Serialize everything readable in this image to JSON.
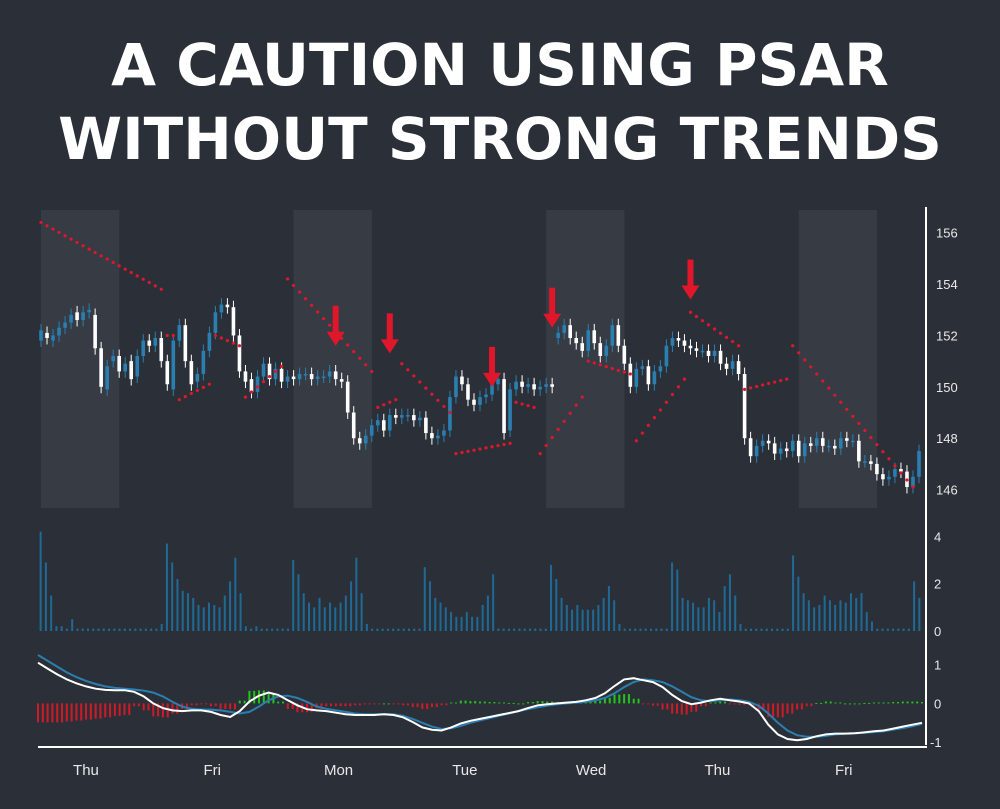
{
  "title": {
    "line1": "A CAUTION USING PSAR",
    "line2": "WITHOUT STRONG TRENDS"
  },
  "colors": {
    "background": "#2b3038",
    "session_band": "#363b44",
    "candle_up": "#2a7fb0",
    "candle_down": "#ffffff",
    "psar": "#e0162b",
    "arrow": "#e0162b",
    "volume": "#1f6a95",
    "macd_line": "#ffffff",
    "signal_line": "#2a7fb0",
    "hist_pos": "#22c41a",
    "hist_neg": "#d11a28"
  },
  "chart_data": [
    {
      "type": "candlestick",
      "name": "price",
      "ylim": [
        145.4,
        157
      ],
      "yticks": [
        "156",
        "154",
        "152",
        "150",
        "148",
        "146"
      ],
      "ytick_values": [
        156,
        154,
        152,
        150,
        148,
        146
      ],
      "xticks": [
        "Thu",
        "Fri",
        "Mon",
        "Tue",
        "Wed",
        "Thu",
        "Fri"
      ],
      "sessions": 7,
      "close": [
        152.2,
        151.9,
        152.0,
        152.3,
        152.5,
        152.8,
        152.6,
        152.9,
        153.0,
        151.5,
        150.0,
        150.8,
        151.2,
        150.6,
        150.9,
        150.3,
        151.2,
        151.8,
        151.6,
        151.9,
        151.0,
        150.1,
        151.8,
        152.4,
        151.0,
        150.1,
        150.5,
        151.4,
        152.1,
        152.9,
        153.2,
        153.1,
        152.0,
        150.6,
        150.2,
        149.8,
        150.4,
        150.9,
        150.3,
        150.7,
        150.2,
        150.4,
        150.3,
        150.5,
        150.5,
        150.3,
        150.4,
        150.4,
        150.6,
        150.3,
        150.2,
        149.0,
        148.0,
        147.8,
        148.1,
        148.5,
        148.7,
        148.3,
        148.9,
        148.8,
        148.9,
        148.9,
        148.7,
        148.8,
        148.2,
        148.0,
        148.1,
        148.3,
        149.6,
        150.4,
        150.1,
        149.5,
        149.3,
        149.6,
        149.7,
        150.1,
        150.3,
        148.2,
        149.9,
        150.2,
        150.0,
        150.1,
        149.9,
        150.0,
        150.1,
        150.0,
        152.1,
        152.4,
        151.9,
        151.7,
        151.4,
        152.2,
        151.7,
        151.2,
        151.6,
        152.4,
        151.6,
        150.9,
        150.0,
        150.7,
        150.8,
        150.1,
        150.6,
        150.8,
        151.6,
        151.9,
        151.8,
        151.6,
        151.5,
        151.4,
        151.4,
        151.2,
        151.4,
        150.9,
        150.7,
        151.0,
        150.5,
        148.0,
        147.3,
        147.7,
        147.9,
        147.8,
        147.4,
        147.6,
        147.5,
        147.9,
        147.3,
        147.8,
        147.7,
        148.0,
        147.7,
        147.7,
        147.6,
        148.0,
        147.9,
        147.9,
        147.1,
        147.1,
        147.0,
        146.6,
        146.4,
        146.5,
        146.8,
        146.7,
        146.1,
        146.5,
        147.5
      ],
      "open": [
        151.8,
        152.1,
        151.8,
        152.0,
        152.3,
        152.5,
        152.9,
        152.6,
        152.9,
        152.8,
        151.5,
        149.9,
        151.0,
        151.2,
        150.6,
        151.0,
        150.4,
        151.2,
        151.8,
        151.6,
        151.9,
        151.0,
        149.9,
        151.8,
        152.4,
        151.0,
        150.2,
        150.5,
        151.4,
        152.1,
        152.9,
        153.2,
        153.1,
        152.0,
        150.6,
        150.3,
        149.8,
        150.4,
        150.9,
        150.3,
        150.7,
        150.2,
        150.4,
        150.3,
        150.5,
        150.5,
        150.3,
        150.4,
        150.4,
        150.6,
        150.3,
        150.2,
        149.0,
        148.0,
        147.8,
        148.1,
        148.5,
        148.7,
        148.3,
        148.9,
        148.8,
        148.9,
        148.9,
        148.7,
        148.8,
        148.2,
        148.0,
        148.1,
        148.3,
        149.6,
        150.4,
        150.1,
        149.5,
        149.3,
        149.6,
        149.7,
        150.1,
        150.3,
        148.3,
        149.9,
        150.2,
        150.0,
        150.1,
        149.9,
        150.0,
        150.1,
        151.9,
        152.1,
        152.4,
        151.9,
        151.7,
        151.4,
        152.2,
        151.7,
        151.2,
        151.6,
        152.4,
        151.6,
        150.9,
        150.0,
        150.7,
        150.8,
        150.1,
        150.6,
        150.8,
        151.6,
        151.9,
        151.8,
        151.6,
        151.5,
        151.4,
        151.4,
        151.2,
        151.4,
        150.9,
        150.7,
        151.0,
        150.5,
        148.0,
        147.3,
        147.7,
        147.9,
        147.8,
        147.4,
        147.6,
        147.5,
        147.9,
        147.3,
        147.8,
        147.7,
        148.0,
        147.7,
        147.7,
        147.6,
        148.0,
        147.9,
        147.9,
        147.1,
        147.1,
        147.0,
        146.6,
        146.4,
        146.5,
        146.8,
        146.7,
        146.1,
        146.5
      ]
    },
    {
      "type": "scatter",
      "name": "psar",
      "segments": [
        {
          "start": 0,
          "from": 156.4,
          "to": 153.8,
          "len": 21
        },
        {
          "start": 21,
          "from": 152.0,
          "to": 152.0,
          "len": 2
        },
        {
          "start": 23,
          "from": 149.5,
          "to": 150.1,
          "len": 6
        },
        {
          "start": 29,
          "from": 152.0,
          "to": 151.6,
          "len": 5
        },
        {
          "start": 34,
          "from": 149.6,
          "to": 150.8,
          "len": 7
        },
        {
          "start": 41,
          "from": 154.2,
          "to": 150.6,
          "len": 15
        },
        {
          "start": 56,
          "from": 149.2,
          "to": 149.5,
          "len": 4
        },
        {
          "start": 60,
          "from": 150.9,
          "to": 149.0,
          "len": 9
        },
        {
          "start": 69,
          "from": 147.4,
          "to": 147.8,
          "len": 10
        },
        {
          "start": 79,
          "from": 149.4,
          "to": 149.2,
          "len": 4
        },
        {
          "start": 83,
          "from": 147.4,
          "to": 149.6,
          "len": 8
        },
        {
          "start": 91,
          "from": 151.0,
          "to": 150.5,
          "len": 8
        },
        {
          "start": 99,
          "from": 147.9,
          "to": 150.3,
          "len": 9
        },
        {
          "start": 108,
          "from": 152.9,
          "to": 151.6,
          "len": 9
        },
        {
          "start": 117,
          "from": 149.9,
          "to": 150.3,
          "len": 8
        },
        {
          "start": 125,
          "from": 151.6,
          "to": 146.1,
          "len": 21
        }
      ]
    },
    {
      "type": "bar",
      "name": "volume",
      "ylim": [
        0,
        4.4
      ],
      "yticks": [
        "4",
        "2",
        "0"
      ],
      "ytick_values": [
        4,
        2,
        0
      ],
      "values": [
        4.2,
        2.9,
        1.5,
        0.2,
        0.2,
        0.1,
        0.5,
        0.1,
        0.1,
        0.1,
        0.1,
        0.1,
        0.1,
        0.1,
        0.1,
        0.1,
        0.1,
        0.1,
        0.1,
        0.1,
        0.1,
        0.1,
        0.1,
        0.3,
        3.7,
        2.9,
        2.2,
        1.7,
        1.6,
        1.4,
        1.1,
        1.0,
        1.2,
        1.1,
        1.0,
        1.5,
        2.1,
        3.1,
        1.6,
        0.2,
        0.1,
        0.2,
        0.1,
        0.1,
        0.1,
        0.1,
        0.1,
        0.1,
        3.0,
        2.4,
        1.6,
        1.2,
        1.0,
        1.4,
        1.0,
        1.2,
        1.0,
        1.2,
        1.5,
        2.1,
        3.1,
        1.6,
        0.3,
        0.1,
        0.1,
        0.1,
        0.1,
        0.1,
        0.1,
        0.1,
        0.1,
        0.1,
        0.1,
        2.7,
        2.1,
        1.4,
        1.2,
        1.0,
        0.8,
        0.6,
        0.6,
        0.8,
        0.6,
        0.6,
        1.1,
        1.5,
        2.4,
        0.1,
        0.1,
        0.1,
        0.1,
        0.1,
        0.1,
        0.1,
        0.1,
        0.1,
        0.1,
        2.8,
        2.2,
        1.4,
        1.1,
        0.9,
        1.1,
        0.9,
        0.9,
        0.9,
        1.1,
        1.4,
        1.9,
        1.3,
        0.3,
        0.1,
        0.1,
        0.1,
        0.1,
        0.1,
        0.1,
        0.1,
        0.1,
        0.1,
        2.9,
        2.6,
        1.4,
        1.3,
        1.2,
        1.0,
        1.0,
        1.4,
        1.3,
        0.8,
        1.9,
        2.4,
        1.5,
        0.3,
        0.1,
        0.1,
        0.1,
        0.1,
        0.1,
        0.1,
        0.1,
        0.1,
        0.1,
        3.2,
        2.3,
        1.6,
        1.3,
        1.0,
        1.1,
        1.5,
        1.3,
        1.1,
        1.3,
        1.2,
        1.6,
        1.4,
        1.6,
        0.8,
        0.4,
        0.1,
        0.1,
        0.1,
        0.1,
        0.1,
        0.1,
        0.1,
        2.1,
        1.4
      ]
    },
    {
      "type": "line",
      "name": "macd",
      "ylim": [
        -1.1,
        1.25
      ],
      "yticks": [
        "1",
        "0",
        "-1"
      ],
      "ytick_values": [
        1,
        0,
        -1
      ],
      "macd": [
        1.05,
        0.9,
        0.75,
        0.62,
        0.52,
        0.44,
        0.38,
        0.35,
        0.34,
        0.34,
        0.3,
        0.18,
        0.0,
        -0.12,
        -0.18,
        -0.2,
        -0.18,
        -0.18,
        -0.22,
        -0.3,
        -0.35,
        -0.2,
        0.05,
        0.2,
        0.28,
        0.22,
        0.08,
        -0.05,
        -0.15,
        -0.18,
        -0.2,
        -0.24,
        -0.28,
        -0.3,
        -0.3,
        -0.3,
        -0.28,
        -0.3,
        -0.36,
        -0.48,
        -0.62,
        -0.68,
        -0.7,
        -0.62,
        -0.52,
        -0.45,
        -0.4,
        -0.35,
        -0.3,
        -0.25,
        -0.2,
        -0.12,
        -0.05,
        -0.02,
        0.0,
        0.02,
        0.04,
        0.08,
        0.14,
        0.26,
        0.45,
        0.62,
        0.65,
        0.6,
        0.55,
        0.42,
        0.22,
        0.06,
        -0.02,
        0.02,
        0.08,
        0.12,
        0.08,
        0.05,
        0.0,
        -0.2,
        -0.55,
        -0.8,
        -0.92,
        -0.95,
        -0.92,
        -0.85,
        -0.8,
        -0.78,
        -0.78,
        -0.77,
        -0.75,
        -0.72,
        -0.7,
        -0.65,
        -0.6,
        -0.55,
        -0.5
      ],
      "signal": [
        1.25,
        1.1,
        0.95,
        0.8,
        0.68,
        0.58,
        0.5,
        0.44,
        0.4,
        0.38,
        0.36,
        0.33,
        0.28,
        0.18,
        0.04,
        -0.08,
        -0.14,
        -0.16,
        -0.16,
        -0.18,
        -0.22,
        -0.26,
        -0.22,
        -0.08,
        0.08,
        0.18,
        0.2,
        0.14,
        0.04,
        -0.08,
        -0.14,
        -0.18,
        -0.22,
        -0.26,
        -0.28,
        -0.28,
        -0.28,
        -0.28,
        -0.32,
        -0.4,
        -0.5,
        -0.6,
        -0.66,
        -0.64,
        -0.58,
        -0.5,
        -0.44,
        -0.38,
        -0.32,
        -0.26,
        -0.2,
        -0.15,
        -0.1,
        -0.06,
        -0.02,
        0.0,
        0.02,
        0.04,
        0.08,
        0.14,
        0.26,
        0.42,
        0.55,
        0.62,
        0.6,
        0.55,
        0.44,
        0.3,
        0.16,
        0.08,
        0.06,
        0.08,
        0.1,
        0.08,
        0.04,
        -0.06,
        -0.26,
        -0.5,
        -0.7,
        -0.82,
        -0.86,
        -0.86,
        -0.84,
        -0.8,
        -0.78,
        -0.77,
        -0.76,
        -0.74,
        -0.72,
        -0.68,
        -0.64,
        -0.59,
        -0.53
      ]
    }
  ],
  "annotations": {
    "arrows": [
      {
        "name": "arrow-monday",
        "x_index": 49,
        "price": 151.6
      },
      {
        "name": "arrow-monday-late",
        "x_index": 58,
        "price": 151.3
      },
      {
        "name": "arrow-tuesday",
        "x_index": 75,
        "price": 150.0
      },
      {
        "name": "arrow-tuesday-late",
        "x_index": 85,
        "price": 152.3
      },
      {
        "name": "arrow-wednesday",
        "x_index": 108,
        "price": 153.4
      }
    ]
  }
}
